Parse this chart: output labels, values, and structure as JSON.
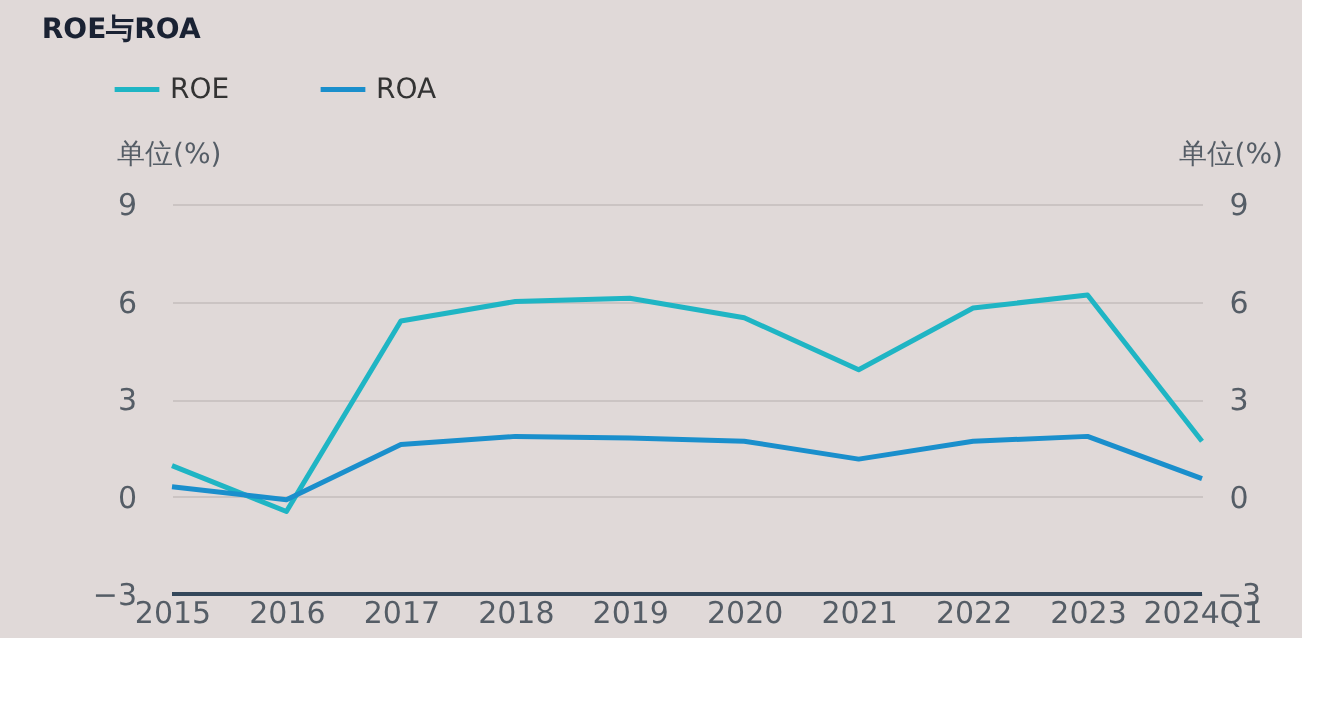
{
  "chart_data": {
    "type": "line",
    "title": "ROE与ROA",
    "categories": [
      "2015",
      "2016",
      "2017",
      "2018",
      "2019",
      "2020",
      "2021",
      "2022",
      "2023",
      "2024Q1"
    ],
    "series": [
      {
        "name": "ROE",
        "color": "#1fb5c4",
        "values": [
          0.95,
          -0.46,
          5.4,
          6.0,
          6.1,
          5.5,
          3.9,
          5.8,
          6.2,
          1.7
        ]
      },
      {
        "name": "ROA",
        "color": "#1a8fcc",
        "values": [
          0.3,
          -0.1,
          1.6,
          1.85,
          1.8,
          1.7,
          1.15,
          1.7,
          1.85,
          0.55
        ]
      }
    ],
    "ylabel": "单位(%)",
    "y2label": "单位(%)",
    "ylim": [
      -3,
      9
    ],
    "yticks": [
      -3,
      0,
      3,
      6,
      9
    ],
    "y2lim": [
      -3,
      9
    ],
    "y2ticks": [
      -3,
      0,
      3,
      6,
      9
    ],
    "grid": "y",
    "legend": "top left",
    "marker": "none",
    "line_style": "solid"
  }
}
